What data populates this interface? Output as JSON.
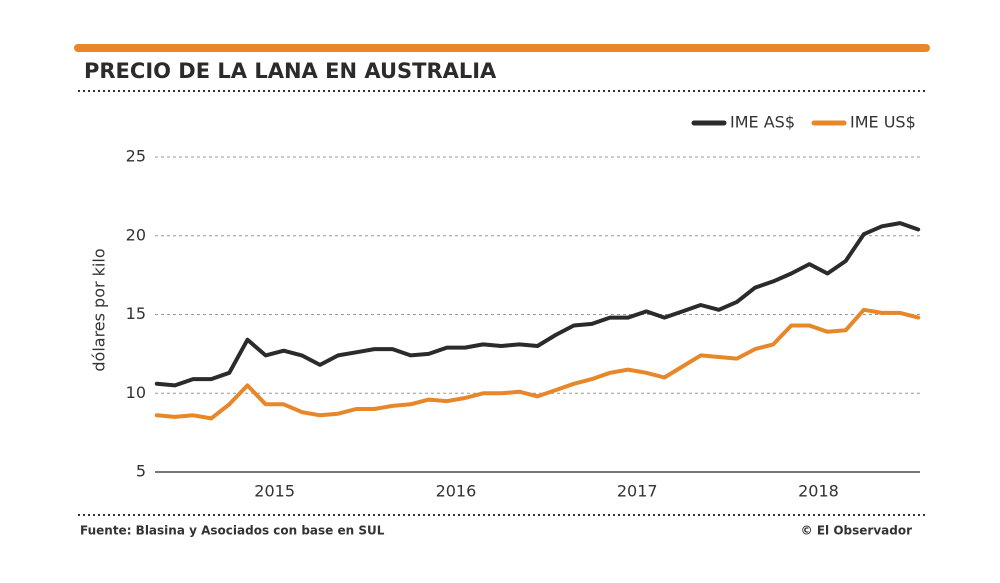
{
  "chart_data": {
    "type": "line",
    "title": "PRECIO DE LA LANA EN AUSTRALIA",
    "y_label": "dólares por kilo",
    "source": "Fuente: Blasina y Asociados con base en SUL",
    "credit": "© El Observador",
    "x": [
      2014.35,
      2014.45,
      2014.55,
      2014.65,
      2014.75,
      2014.85,
      2014.95,
      2015.05,
      2015.15,
      2015.25,
      2015.35,
      2015.45,
      2015.55,
      2015.65,
      2015.75,
      2015.85,
      2015.95,
      2016.05,
      2016.15,
      2016.25,
      2016.35,
      2016.45,
      2016.55,
      2016.65,
      2016.75,
      2016.85,
      2016.95,
      2017.05,
      2017.15,
      2017.25,
      2017.35,
      2017.45,
      2017.55,
      2017.65,
      2017.75,
      2017.85,
      2017.95,
      2018.05,
      2018.15,
      2018.25,
      2018.35,
      2018.45,
      2018.55
    ],
    "series": [
      {
        "name": "IME AS$",
        "color": "#2b2b2b",
        "values": [
          10.6,
          10.5,
          10.9,
          10.9,
          11.3,
          13.4,
          12.4,
          12.7,
          12.4,
          11.8,
          12.4,
          12.6,
          12.8,
          12.8,
          12.4,
          12.5,
          12.9,
          12.9,
          13.1,
          13.0,
          13.1,
          13.0,
          13.7,
          14.3,
          14.4,
          14.8,
          14.8,
          15.2,
          14.8,
          15.2,
          15.6,
          15.3,
          15.8,
          16.7,
          17.1,
          17.6,
          18.2,
          17.6,
          18.4,
          20.1,
          20.6,
          20.8,
          20.4
        ]
      },
      {
        "name": "IME US$",
        "color": "#e8862a",
        "values": [
          8.6,
          8.5,
          8.6,
          8.4,
          9.3,
          10.5,
          9.3,
          9.3,
          8.8,
          8.6,
          8.7,
          9.0,
          9.0,
          9.2,
          9.3,
          9.6,
          9.5,
          9.7,
          10.0,
          10.0,
          10.1,
          9.8,
          10.2,
          10.6,
          10.9,
          11.3,
          11.5,
          11.3,
          11.0,
          11.7,
          12.4,
          12.3,
          12.2,
          12.8,
          13.1,
          14.3,
          14.3,
          13.9,
          14.0,
          15.3,
          15.1,
          15.1,
          14.8
        ]
      }
    ],
    "xlim": [
      2014.34,
      2018.56
    ],
    "xticks": [
      2015,
      2016,
      2017,
      2018
    ],
    "ylim": [
      5,
      25
    ],
    "yticks": [
      5,
      10,
      15,
      20,
      25
    ],
    "grid": true,
    "legend": "top-right"
  }
}
